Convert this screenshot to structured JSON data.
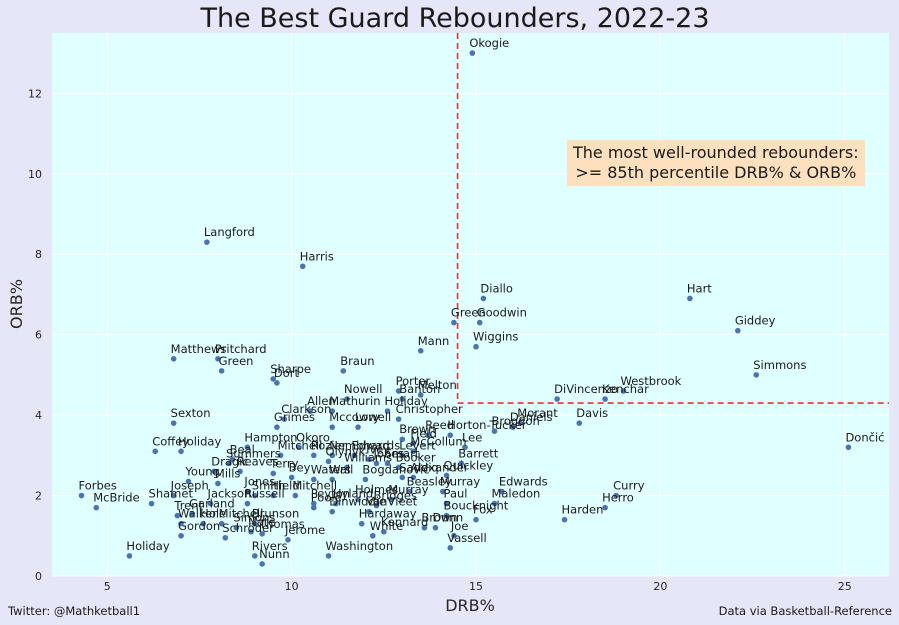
{
  "chart_data": {
    "type": "scatter",
    "title": "The Best Guard Rebounders, 2022-23",
    "xlabel": "DRB%",
    "ylabel": "ORB%",
    "xlim": [
      3.5,
      26.2
    ],
    "ylim": [
      0,
      13.5
    ],
    "xticks": [
      5,
      10,
      15,
      20,
      25
    ],
    "yticks": [
      0,
      2,
      4,
      6,
      8,
      10,
      12
    ],
    "grid": true,
    "point_color": "#4c72b0",
    "plot_bg": "#e0ffff",
    "threshold_color": "#e8322f",
    "threshold": {
      "x": 14.5,
      "y": 4.3
    },
    "annotation": "The most well-rounded rebounders:\n>= 85th percentile DRB% & ORB%",
    "points": [
      {
        "label": "Okogie",
        "x": 14.9,
        "y": 13.0
      },
      {
        "label": "Langford",
        "x": 7.7,
        "y": 8.3
      },
      {
        "label": "Harris",
        "x": 10.3,
        "y": 7.7
      },
      {
        "label": "Hart",
        "x": 20.8,
        "y": 6.9
      },
      {
        "label": "Diallo",
        "x": 15.2,
        "y": 6.9
      },
      {
        "label": "Giddey",
        "x": 22.1,
        "y": 6.1
      },
      {
        "label": "Green",
        "x": 14.4,
        "y": 6.3
      },
      {
        "label": "Goodwin",
        "x": 15.1,
        "y": 6.3
      },
      {
        "label": "Wiggins",
        "x": 15.0,
        "y": 5.7
      },
      {
        "label": "Mann",
        "x": 13.5,
        "y": 5.6
      },
      {
        "label": "Matthews",
        "x": 6.8,
        "y": 5.4
      },
      {
        "label": "Pritchard",
        "x": 8.0,
        "y": 5.4
      },
      {
        "label": "Green",
        "x": 8.1,
        "y": 5.1
      },
      {
        "label": "Sharpe",
        "x": 9.5,
        "y": 4.9
      },
      {
        "label": "Dort",
        "x": 9.6,
        "y": 4.8
      },
      {
        "label": "Braun",
        "x": 11.4,
        "y": 5.1
      },
      {
        "label": "Simmons",
        "x": 22.6,
        "y": 5.0
      },
      {
        "label": "Melton",
        "x": 13.5,
        "y": 4.5
      },
      {
        "label": "Porter",
        "x": 12.9,
        "y": 4.6
      },
      {
        "label": "Banton",
        "x": 13.0,
        "y": 4.4
      },
      {
        "label": "Nowell",
        "x": 11.5,
        "y": 4.4
      },
      {
        "label": "Westbrook",
        "x": 19.0,
        "y": 4.6
      },
      {
        "label": "DiVincenzo",
        "x": 17.2,
        "y": 4.4
      },
      {
        "label": "Kenchar",
        "x": 18.5,
        "y": 4.4
      },
      {
        "label": "Mathurin",
        "x": 11.1,
        "y": 4.1
      },
      {
        "label": "Holiday",
        "x": 12.6,
        "y": 4.1
      },
      {
        "label": "Christopher",
        "x": 12.9,
        "y": 3.9
      },
      {
        "label": "Allen",
        "x": 10.5,
        "y": 4.1
      },
      {
        "label": "Clarkson",
        "x": 9.8,
        "y": 3.9
      },
      {
        "label": "Mccowry",
        "x": 11.1,
        "y": 3.7
      },
      {
        "label": "Lowell",
        "x": 11.8,
        "y": 3.7
      },
      {
        "label": "Sexton",
        "x": 6.8,
        "y": 3.8
      },
      {
        "label": "Grimes",
        "x": 9.6,
        "y": 3.7
      },
      {
        "label": "Morant",
        "x": 16.2,
        "y": 3.8
      },
      {
        "label": "Davis",
        "x": 17.8,
        "y": 3.8
      },
      {
        "label": "Daniels",
        "x": 16.0,
        "y": 3.7
      },
      {
        "label": "Brogdon",
        "x": 15.5,
        "y": 3.6
      },
      {
        "label": "Horton-Tucker",
        "x": 14.3,
        "y": 3.5
      },
      {
        "label": "Reed",
        "x": 13.7,
        "y": 3.5
      },
      {
        "label": "Brown",
        "x": 13.0,
        "y": 3.4
      },
      {
        "label": "Lee",
        "x": 14.7,
        "y": 3.2
      },
      {
        "label": "Field",
        "x": 13.3,
        "y": 3.3
      },
      {
        "label": "McCollum",
        "x": 13.3,
        "y": 3.1
      },
      {
        "label": "Levert",
        "x": 13.0,
        "y": 3.0
      },
      {
        "label": "Dončić",
        "x": 25.1,
        "y": 3.2
      },
      {
        "label": "Coffey",
        "x": 6.3,
        "y": 3.1
      },
      {
        "label": "Holiday",
        "x": 7.0,
        "y": 3.1
      },
      {
        "label": "Hampton",
        "x": 8.8,
        "y": 3.2
      },
      {
        "label": "Okoro",
        "x": 10.2,
        "y": 3.2
      },
      {
        "label": "Beal",
        "x": 8.4,
        "y": 2.9
      },
      {
        "label": "Mitchell",
        "x": 9.7,
        "y": 3.0
      },
      {
        "label": "Rozier",
        "x": 10.6,
        "y": 3.0
      },
      {
        "label": "Nembhard",
        "x": 11.1,
        "y": 3.0
      },
      {
        "label": "Edwards",
        "x": 11.7,
        "y": 3.0
      },
      {
        "label": "Olynyk",
        "x": 11.0,
        "y": 2.85
      },
      {
        "label": "Ivey",
        "x": 12.1,
        "y": 2.9
      },
      {
        "label": "Jones",
        "x": 12.3,
        "y": 2.8
      },
      {
        "label": "Williams",
        "x": 11.5,
        "y": 2.7
      },
      {
        "label": "Smart",
        "x": 12.6,
        "y": 2.8
      },
      {
        "label": "Booker",
        "x": 12.9,
        "y": 2.7
      },
      {
        "label": "Barrett",
        "x": 14.6,
        "y": 2.8
      },
      {
        "label": "Quickley",
        "x": 14.2,
        "y": 2.5
      },
      {
        "label": "Summers",
        "x": 8.3,
        "y": 2.8
      },
      {
        "label": "Reaves",
        "x": 8.6,
        "y": 2.6
      },
      {
        "label": "Dragić",
        "x": 7.9,
        "y": 2.6
      },
      {
        "label": "Terry",
        "x": 9.5,
        "y": 2.55
      },
      {
        "label": "Young",
        "x": 7.2,
        "y": 2.35
      },
      {
        "label": "Mills",
        "x": 8.0,
        "y": 2.3
      },
      {
        "label": "Bey",
        "x": 10.0,
        "y": 2.45
      },
      {
        "label": "Waters",
        "x": 10.6,
        "y": 2.4
      },
      {
        "label": "Wall",
        "x": 11.1,
        "y": 2.4
      },
      {
        "label": "Bogdanović",
        "x": 12.0,
        "y": 2.4
      },
      {
        "label": "Saddiq",
        "x": 13.0,
        "y": 2.45
      },
      {
        "label": "Alexander",
        "x": 13.3,
        "y": 2.45
      },
      {
        "label": "Beasley",
        "x": 13.2,
        "y": 2.1
      },
      {
        "label": "Murray",
        "x": 14.1,
        "y": 2.1
      },
      {
        "label": "Edwards",
        "x": 15.7,
        "y": 2.1
      },
      {
        "label": "Curry",
        "x": 18.8,
        "y": 2.0
      },
      {
        "label": "Herro",
        "x": 18.5,
        "y": 1.7
      },
      {
        "label": "Harden",
        "x": 17.4,
        "y": 1.4
      },
      {
        "label": "Forbes",
        "x": 4.3,
        "y": 2.0
      },
      {
        "label": "McBride",
        "x": 4.7,
        "y": 1.7
      },
      {
        "label": "Shamet",
        "x": 6.2,
        "y": 1.8
      },
      {
        "label": "Joseph",
        "x": 6.8,
        "y": 2.0
      },
      {
        "label": "Jones",
        "x": 8.8,
        "y": 2.1
      },
      {
        "label": "Smith",
        "x": 9.0,
        "y": 2.0
      },
      {
        "label": "Hield",
        "x": 9.5,
        "y": 2.0
      },
      {
        "label": "Mitchell",
        "x": 10.1,
        "y": 2.0
      },
      {
        "label": "Russell",
        "x": 8.8,
        "y": 1.8
      },
      {
        "label": "Jackson",
        "x": 7.8,
        "y": 1.8
      },
      {
        "label": "Peyton",
        "x": 10.6,
        "y": 1.8
      },
      {
        "label": "Hyland",
        "x": 11.2,
        "y": 1.8
      },
      {
        "label": "Bridges",
        "x": 12.3,
        "y": 1.75
      },
      {
        "label": "Holmes",
        "x": 11.8,
        "y": 1.9
      },
      {
        "label": "Murray",
        "x": 12.7,
        "y": 1.9
      },
      {
        "label": "Paul",
        "x": 14.2,
        "y": 1.8
      },
      {
        "label": "Maledon",
        "x": 15.5,
        "y": 1.8
      },
      {
        "label": "Poole",
        "x": 10.6,
        "y": 1.7
      },
      {
        "label": "Dinwiddie",
        "x": 11.1,
        "y": 1.6
      },
      {
        "label": "Trent",
        "x": 6.9,
        "y": 1.5
      },
      {
        "label": "Garland",
        "x": 7.3,
        "y": 1.55
      },
      {
        "label": "Walker",
        "x": 7.0,
        "y": 1.3
      },
      {
        "label": "Mitchell",
        "x": 8.1,
        "y": 1.3
      },
      {
        "label": "Hardaway",
        "x": 11.9,
        "y": 1.3
      },
      {
        "label": "VanVleet",
        "x": 12.1,
        "y": 1.6
      },
      {
        "label": "Boucknight",
        "x": 14.2,
        "y": 1.5
      },
      {
        "label": "Fox",
        "x": 15.0,
        "y": 1.4
      },
      {
        "label": "Hole",
        "x": 7.6,
        "y": 1.3
      },
      {
        "label": "Simons",
        "x": 8.5,
        "y": 1.2
      },
      {
        "label": "Brunson",
        "x": 9.0,
        "y": 1.3
      },
      {
        "label": "Nate",
        "x": 8.9,
        "y": 1.1
      },
      {
        "label": "Thomas",
        "x": 9.2,
        "y": 1.05
      },
      {
        "label": "Gordon",
        "x": 7.0,
        "y": 1.0
      },
      {
        "label": "Schröder",
        "x": 8.2,
        "y": 0.95
      },
      {
        "label": "Brown",
        "x": 13.6,
        "y": 1.2
      },
      {
        "label": "Dunn",
        "x": 13.9,
        "y": 1.2
      },
      {
        "label": "White",
        "x": 12.2,
        "y": 1.0
      },
      {
        "label": "Kennard",
        "x": 12.5,
        "y": 1.1
      },
      {
        "label": "Joe",
        "x": 14.4,
        "y": 1.0
      },
      {
        "label": "Vassell",
        "x": 14.3,
        "y": 0.7
      },
      {
        "label": "Jerome",
        "x": 9.9,
        "y": 0.9
      },
      {
        "label": "Washington",
        "x": 11.0,
        "y": 0.5
      },
      {
        "label": "Holiday",
        "x": 5.6,
        "y": 0.5
      },
      {
        "label": "Rivers",
        "x": 9.0,
        "y": 0.5
      },
      {
        "label": "Nunn",
        "x": 9.2,
        "y": 0.3
      }
    ]
  },
  "footer": {
    "left": "Twitter: @Mathketball1",
    "right": "Data via Basketball-Reference"
  }
}
